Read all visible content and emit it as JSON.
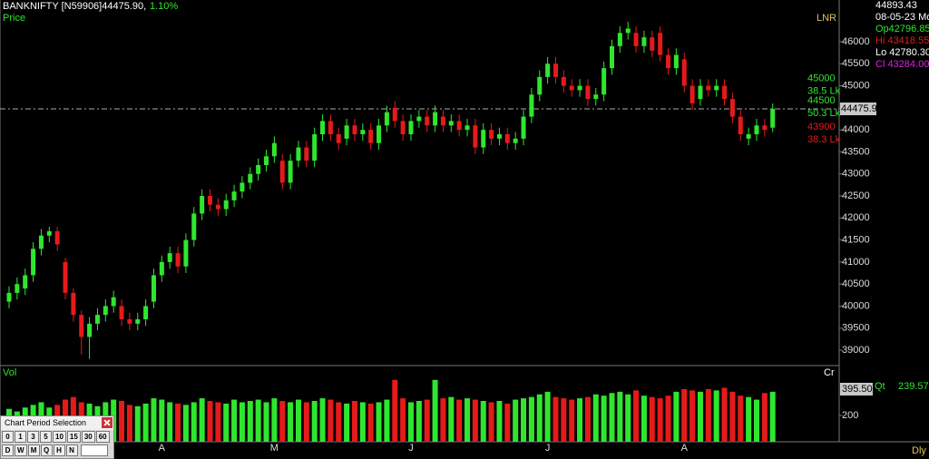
{
  "chart_data": {
    "type": "candlestick",
    "title": "BANKNIFTY [N59906]44475.90,",
    "change": "1.10%",
    "price_label": "Price",
    "volume_label": "Vol",
    "volume_unit": "Cr",
    "indicator": "LNR",
    "interval": "Dly",
    "up_color": "#2fe62f",
    "down_color": "#e61a1a",
    "categories": [
      null,
      null,
      null,
      null,
      null,
      null,
      null,
      null,
      null,
      null,
      null,
      null,
      null,
      null,
      null,
      null,
      null,
      null,
      null,
      "A",
      null,
      null,
      null,
      null,
      null,
      null,
      null,
      null,
      null,
      null,
      null,
      null,
      null,
      "M",
      null,
      null,
      null,
      null,
      null,
      null,
      null,
      null,
      null,
      null,
      null,
      null,
      null,
      null,
      null,
      null,
      "J",
      null,
      null,
      null,
      null,
      null,
      null,
      null,
      null,
      null,
      null,
      null,
      null,
      null,
      null,
      null,
      null,
      "J",
      null,
      null,
      null,
      null,
      null,
      null,
      null,
      null,
      null,
      null,
      null,
      null,
      null,
      null,
      null,
      null,
      "A",
      null,
      null,
      null,
      null,
      null,
      null,
      null,
      null,
      null,
      null,
      null
    ],
    "open": [
      40100,
      40300,
      40400,
      40700,
      41300,
      41600,
      41700,
      41000,
      40300,
      39800,
      39300,
      39600,
      39800,
      40000,
      40000,
      39700,
      39600,
      39700,
      40100,
      40700,
      41000,
      41200,
      40900,
      41500,
      42100,
      42500,
      42300,
      42200,
      42400,
      42600,
      42800,
      43000,
      43200,
      43400,
      43300,
      42800,
      43300,
      43600,
      43300,
      43900,
      44200,
      43900,
      43800,
      44100,
      43900,
      44000,
      43700,
      44100,
      44500,
      44200,
      43900,
      44200,
      44300,
      44100,
      44300,
      44100,
      44200,
      44000,
      44100,
      43600,
      44000,
      43800,
      43900,
      43700,
      43800,
      44300,
      44800,
      45200,
      45500,
      45200,
      45000,
      44900,
      45000,
      44700,
      44800,
      45400,
      45900,
      46200,
      46200,
      45900,
      46100,
      46200,
      45700,
      45400,
      45600,
      45000,
      44700,
      45000,
      44900,
      45000,
      44700,
      44300,
      43800,
      43900,
      44100,
      44050
    ],
    "high": [
      40450,
      40650,
      40850,
      41450,
      41750,
      41800,
      41800,
      41100,
      40400,
      39900,
      39750,
      39950,
      40150,
      40350,
      40150,
      39850,
      39850,
      40150,
      40850,
      41150,
      41350,
      41350,
      41650,
      42250,
      42650,
      42650,
      42450,
      42550,
      42750,
      42950,
      43150,
      43350,
      43550,
      43850,
      43450,
      43450,
      43750,
      43750,
      44050,
      44350,
      44350,
      44050,
      44250,
      44250,
      44150,
      44150,
      44250,
      44550,
      44650,
      44350,
      44350,
      44450,
      44450,
      44550,
      44450,
      44350,
      44350,
      44250,
      44250,
      44150,
      44150,
      44050,
      44050,
      43950,
      44450,
      44950,
      45350,
      45650,
      45650,
      45350,
      45150,
      45150,
      45150,
      44950,
      45550,
      46050,
      46350,
      46450,
      46350,
      46250,
      46250,
      46350,
      45850,
      45850,
      45750,
      45150,
      45150,
      45150,
      45150,
      45150,
      44850,
      44450,
      44050,
      44250,
      44250,
      44600
    ],
    "low": [
      39950,
      40150,
      40250,
      40550,
      41150,
      41450,
      41250,
      40150,
      39650,
      38900,
      38800,
      39450,
      39650,
      39850,
      39550,
      39450,
      39450,
      39550,
      39950,
      40550,
      40850,
      40750,
      40750,
      41350,
      41950,
      42150,
      42050,
      42050,
      42250,
      42450,
      42650,
      42850,
      43050,
      43250,
      42650,
      42650,
      43150,
      43150,
      43150,
      43750,
      43750,
      43550,
      43650,
      43750,
      43750,
      43550,
      43550,
      43950,
      44050,
      43750,
      43750,
      44050,
      43950,
      43950,
      43950,
      43950,
      43850,
      43850,
      43450,
      43450,
      43650,
      43650,
      43550,
      43550,
      43650,
      44150,
      44650,
      45050,
      45050,
      44850,
      44750,
      44750,
      44550,
      44550,
      44650,
      45250,
      45750,
      46050,
      45750,
      45750,
      45650,
      45550,
      45250,
      45250,
      44850,
      44450,
      44550,
      44750,
      44750,
      44550,
      44150,
      43750,
      43650,
      43750,
      43850,
      43950
    ],
    "close": [
      40300,
      40500,
      40700,
      41300,
      41600,
      41700,
      41400,
      40300,
      39800,
      39300,
      39600,
      39800,
      40000,
      40200,
      39700,
      39600,
      39700,
      40000,
      40700,
      41000,
      41200,
      40900,
      41500,
      42100,
      42500,
      42300,
      42200,
      42400,
      42600,
      42800,
      43000,
      43200,
      43400,
      43700,
      42800,
      43300,
      43600,
      43300,
      43900,
      44200,
      43900,
      43700,
      44100,
      43900,
      44000,
      43700,
      44100,
      44400,
      44200,
      43900,
      44200,
      44300,
      44100,
      44400,
      44100,
      44200,
      44000,
      44100,
      43600,
      44000,
      43800,
      43900,
      43700,
      43800,
      44300,
      44800,
      45200,
      45500,
      45200,
      45000,
      44900,
      45000,
      44700,
      44800,
      45400,
      45900,
      46200,
      46300,
      45900,
      46100,
      45800,
      45700,
      45400,
      45700,
      45000,
      44600,
      45000,
      44900,
      45000,
      44700,
      44300,
      43900,
      43900,
      44100,
      44000,
      44476
    ],
    "volume": [
      250,
      230,
      260,
      280,
      300,
      260,
      280,
      320,
      340,
      300,
      290,
      270,
      300,
      320,
      310,
      280,
      270,
      290,
      330,
      320,
      300,
      290,
      280,
      300,
      330,
      310,
      300,
      290,
      320,
      300,
      310,
      320,
      300,
      330,
      310,
      300,
      320,
      300,
      310,
      330,
      320,
      300,
      290,
      310,
      300,
      290,
      300,
      320,
      470,
      330,
      300,
      310,
      320,
      470,
      330,
      340,
      320,
      330,
      320,
      310,
      300,
      310,
      290,
      320,
      330,
      340,
      360,
      380,
      340,
      330,
      320,
      330,
      340,
      360,
      350,
      370,
      380,
      360,
      390,
      350,
      340,
      330,
      350,
      380,
      400,
      390,
      380,
      400,
      390,
      410,
      380,
      350,
      340,
      320,
      370,
      380
    ],
    "ylim": [
      38650,
      46947
    ],
    "yticks": [
      39000,
      39500,
      40000,
      40500,
      41000,
      41500,
      42000,
      42500,
      43000,
      43500,
      44000,
      44500,
      45000,
      45500,
      46000
    ],
    "y2lim": [
      0,
      565
    ],
    "y2ticks": [
      200
    ],
    "last_price": 44475.9,
    "volume_box": "395.50",
    "levels": [
      {
        "price": 45000,
        "qty": "38.5 Lk",
        "color": "#2fe62f"
      },
      {
        "price": 44500,
        "qty": "50.3 Lk",
        "color": "#2fe62f"
      },
      {
        "price": 43900,
        "qty": "38.3 Lk",
        "color": "#e61a1a"
      }
    ],
    "info": [
      {
        "text": "44893.43",
        "color": "#ffffff"
      },
      {
        "text": "08-05-23 Mo",
        "color": "#ffffff"
      },
      {
        "text": "Op42796.85",
        "color": "#2fe62f"
      },
      {
        "text": "Hi 43418.55",
        "color": "#e61a1a"
      },
      {
        "text": "Lo 42780.30",
        "color": "#ffffff"
      },
      {
        "text": "Cl 43284.00",
        "color": "#e020e0"
      }
    ],
    "qty": {
      "label": "Qt",
      "value": "239.57"
    }
  },
  "period_popup": {
    "title": "Chart Period Selection",
    "row1": [
      "0",
      "1",
      "3",
      "5",
      "10",
      "15",
      "30",
      "60"
    ],
    "row2": [
      "D",
      "W",
      "M",
      "Q",
      "H",
      "N"
    ]
  }
}
